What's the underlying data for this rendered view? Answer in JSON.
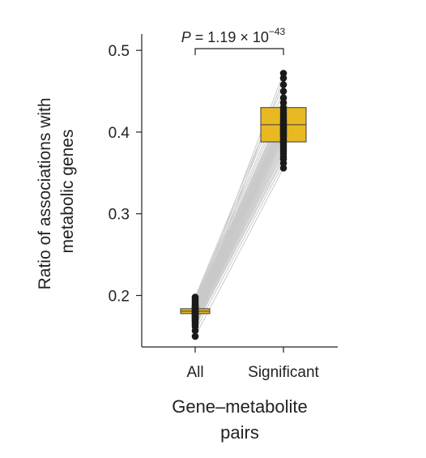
{
  "chart_data": {
    "type": "box-paired",
    "ylabel_lines": [
      "Ratio of associations with",
      "metabolic genes"
    ],
    "xlabel_lines": [
      "Gene–metabolite",
      "pairs"
    ],
    "categories": [
      "All",
      "Significant"
    ],
    "ylim": [
      0.137,
      0.52
    ],
    "yticks": [
      0.2,
      0.3,
      0.4,
      0.5
    ],
    "ytick_labels": [
      "0.2",
      "0.3",
      "0.4",
      "0.5"
    ],
    "annotation": {
      "p_italic": "P",
      "p_text": " = 1.19 × 10",
      "p_exponent": "−43"
    },
    "boxes": [
      {
        "category": "All",
        "q1": 0.1778,
        "median": 0.1808,
        "q3": 0.1838
      },
      {
        "category": "Significant",
        "q1": 0.388,
        "median": 0.409,
        "q3": 0.43
      }
    ],
    "pairs": [
      [
        0.15,
        0.356
      ],
      [
        0.157,
        0.362
      ],
      [
        0.162,
        0.367
      ],
      [
        0.164,
        0.37
      ],
      [
        0.166,
        0.374
      ],
      [
        0.168,
        0.377
      ],
      [
        0.169,
        0.38
      ],
      [
        0.17,
        0.383
      ],
      [
        0.171,
        0.386
      ],
      [
        0.172,
        0.389
      ],
      [
        0.173,
        0.391
      ],
      [
        0.174,
        0.394
      ],
      [
        0.175,
        0.396
      ],
      [
        0.176,
        0.398
      ],
      [
        0.177,
        0.4
      ],
      [
        0.178,
        0.402
      ],
      [
        0.179,
        0.404
      ],
      [
        0.18,
        0.406
      ],
      [
        0.181,
        0.408
      ],
      [
        0.181,
        0.41
      ],
      [
        0.182,
        0.412
      ],
      [
        0.183,
        0.414
      ],
      [
        0.184,
        0.416
      ],
      [
        0.185,
        0.418
      ],
      [
        0.186,
        0.421
      ],
      [
        0.187,
        0.424
      ],
      [
        0.188,
        0.427
      ],
      [
        0.19,
        0.43
      ],
      [
        0.192,
        0.436
      ],
      [
        0.194,
        0.442
      ],
      [
        0.196,
        0.45
      ],
      [
        0.198,
        0.458
      ],
      [
        0.174,
        0.466
      ],
      [
        0.186,
        0.472
      ],
      [
        0.178,
        0.395
      ]
    ],
    "colors": {
      "box_fill": "#e9b923",
      "box_stroke": "#3a3a3a",
      "points": "#1a1a1a",
      "lines": "#c9c9c9",
      "axis": "#222222"
    }
  }
}
